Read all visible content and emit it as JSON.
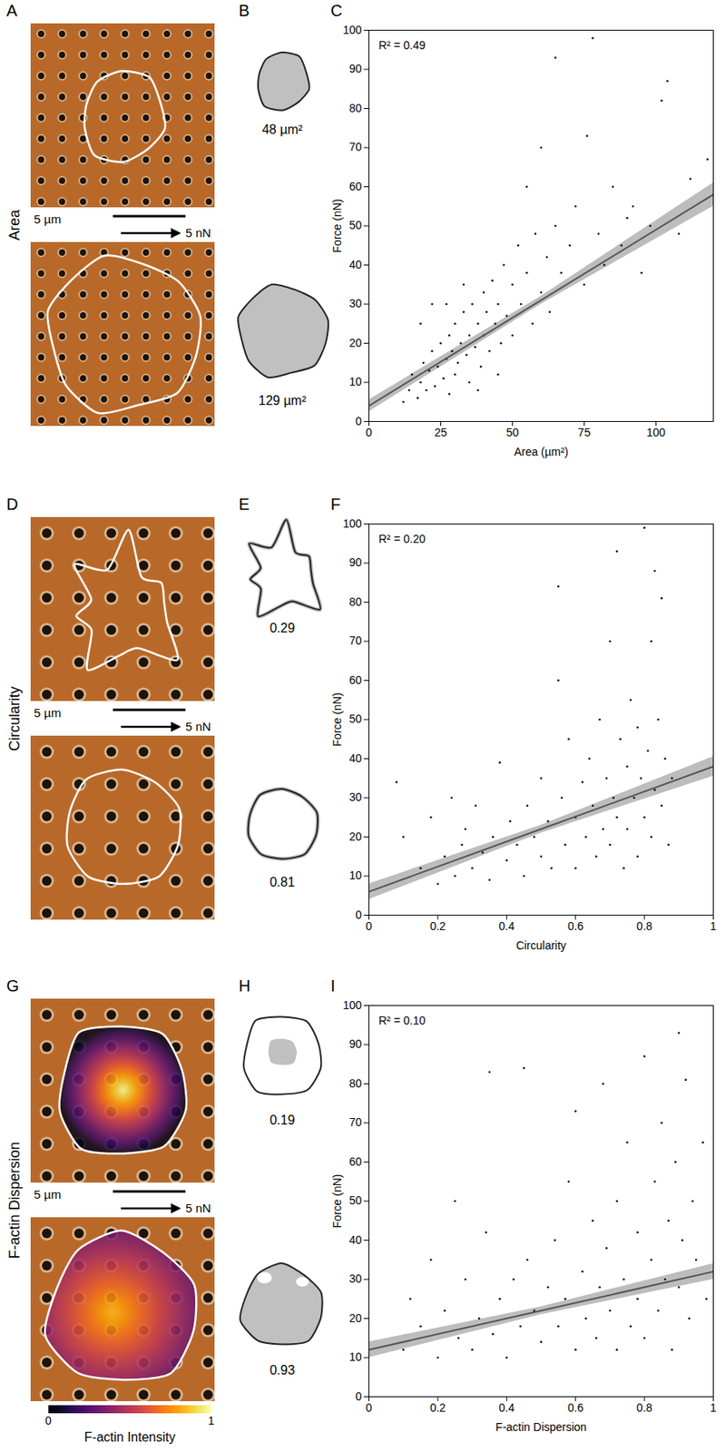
{
  "chart_data": [
    {
      "type": "scatter",
      "panel": "C",
      "annotation": "R² = 0.49",
      "x_label": "Area (µm²)",
      "y_label": "Force (nN)",
      "xlim": [
        0,
        120
      ],
      "xticks": [
        0,
        25,
        50,
        75,
        100
      ],
      "ylim": [
        0,
        100
      ],
      "yticks": [
        0,
        10,
        20,
        30,
        40,
        50,
        60,
        70,
        80,
        90,
        100
      ],
      "color": "#000000",
      "x": [
        12,
        14,
        15,
        17,
        18,
        19,
        20,
        21,
        22,
        23,
        24,
        25,
        26,
        27,
        28,
        28,
        29,
        30,
        30,
        31,
        32,
        33,
        34,
        35,
        35,
        36,
        37,
        38,
        39,
        40,
        40,
        41,
        42,
        43,
        44,
        45,
        46,
        47,
        48,
        50,
        50,
        52,
        53,
        55,
        55,
        57,
        58,
        60,
        60,
        62,
        63,
        65,
        65,
        67,
        70,
        72,
        75,
        76,
        78,
        80,
        82,
        85,
        88,
        90,
        92,
        95,
        98,
        102,
        104,
        108,
        112,
        118,
        22,
        33,
        45,
        38,
        27,
        18
      ],
      "y": [
        5,
        8,
        12,
        6,
        10,
        15,
        8,
        13,
        18,
        9,
        14,
        20,
        11,
        16,
        22,
        7,
        18,
        25,
        12,
        15,
        20,
        28,
        17,
        22,
        10,
        30,
        19,
        25,
        14,
        33,
        22,
        28,
        18,
        36,
        25,
        30,
        20,
        40,
        27,
        35,
        22,
        45,
        30,
        38,
        60,
        25,
        48,
        33,
        70,
        42,
        28,
        93,
        50,
        38,
        45,
        55,
        35,
        73,
        98,
        48,
        40,
        60,
        45,
        52,
        55,
        38,
        50,
        82,
        87,
        48,
        62,
        67,
        30,
        35,
        12,
        8,
        30,
        25
      ],
      "fit": {
        "x": [
          0,
          60,
          120
        ],
        "y": [
          4,
          31,
          58
        ],
        "lower": [
          2.5,
          30,
          55
        ],
        "upper": [
          5.5,
          32,
          61
        ],
        "color": "#555555"
      }
    },
    {
      "type": "scatter",
      "panel": "F",
      "annotation": "R² = 0.20",
      "x_label": "Circularity",
      "y_label": "Force (nN)",
      "xlim": [
        0,
        1
      ],
      "xticks": [
        0,
        0.2,
        0.4,
        0.6,
        0.8,
        1
      ],
      "ylim": [
        0,
        100
      ],
      "yticks": [
        0,
        10,
        20,
        30,
        40,
        50,
        60,
        70,
        80,
        90,
        100
      ],
      "color": "#000000",
      "x": [
        0.08,
        0.1,
        0.15,
        0.18,
        0.2,
        0.22,
        0.24,
        0.25,
        0.27,
        0.28,
        0.3,
        0.31,
        0.33,
        0.35,
        0.36,
        0.38,
        0.4,
        0.41,
        0.43,
        0.45,
        0.46,
        0.48,
        0.5,
        0.5,
        0.52,
        0.53,
        0.55,
        0.55,
        0.56,
        0.57,
        0.58,
        0.6,
        0.6,
        0.62,
        0.63,
        0.64,
        0.65,
        0.66,
        0.67,
        0.68,
        0.69,
        0.7,
        0.7,
        0.71,
        0.72,
        0.72,
        0.73,
        0.74,
        0.75,
        0.75,
        0.76,
        0.77,
        0.78,
        0.78,
        0.79,
        0.8,
        0.8,
        0.81,
        0.82,
        0.82,
        0.83,
        0.83,
        0.84,
        0.85,
        0.85,
        0.86,
        0.87,
        0.88
      ],
      "y": [
        34,
        20,
        12,
        25,
        8,
        15,
        30,
        10,
        18,
        22,
        12,
        28,
        16,
        9,
        20,
        39,
        14,
        24,
        18,
        10,
        28,
        20,
        35,
        15,
        24,
        12,
        60,
        84,
        30,
        18,
        45,
        25,
        12,
        34,
        20,
        40,
        28,
        15,
        50,
        22,
        35,
        70,
        18,
        30,
        93,
        25,
        45,
        12,
        38,
        22,
        55,
        30,
        48,
        15,
        35,
        99,
        25,
        42,
        70,
        20,
        88,
        32,
        50,
        81,
        28,
        40,
        18,
        35
      ],
      "fit": {
        "x": [
          0,
          0.5,
          1
        ],
        "y": [
          6,
          22,
          38
        ],
        "lower": [
          4,
          21,
          35.5
        ],
        "upper": [
          8,
          23,
          40.5
        ],
        "color": "#555555"
      }
    },
    {
      "type": "scatter",
      "panel": "I",
      "annotation": "R² = 0.10",
      "x_label": "F-actin Dispersion",
      "y_label": "Force (nN)",
      "xlim": [
        0,
        1
      ],
      "xticks": [
        0,
        0.2,
        0.4,
        0.6,
        0.8,
        1
      ],
      "ylim": [
        0,
        100
      ],
      "yticks": [
        0,
        10,
        20,
        30,
        40,
        50,
        60,
        70,
        80,
        90,
        100
      ],
      "color": "#000000",
      "x": [
        0.1,
        0.12,
        0.15,
        0.18,
        0.2,
        0.22,
        0.25,
        0.26,
        0.28,
        0.3,
        0.32,
        0.34,
        0.35,
        0.36,
        0.38,
        0.4,
        0.42,
        0.44,
        0.45,
        0.46,
        0.48,
        0.5,
        0.52,
        0.54,
        0.55,
        0.57,
        0.58,
        0.6,
        0.6,
        0.62,
        0.63,
        0.65,
        0.66,
        0.67,
        0.68,
        0.69,
        0.7,
        0.72,
        0.72,
        0.74,
        0.75,
        0.76,
        0.78,
        0.78,
        0.8,
        0.8,
        0.82,
        0.83,
        0.84,
        0.85,
        0.86,
        0.87,
        0.88,
        0.89,
        0.9,
        0.9,
        0.91,
        0.92,
        0.93,
        0.94,
        0.95,
        0.97,
        0.98
      ],
      "y": [
        12,
        25,
        18,
        35,
        10,
        22,
        50,
        15,
        30,
        12,
        20,
        42,
        83,
        16,
        25,
        10,
        30,
        18,
        84,
        35,
        22,
        14,
        28,
        40,
        18,
        25,
        55,
        12,
        73,
        32,
        20,
        45,
        15,
        28,
        80,
        38,
        22,
        50,
        12,
        30,
        65,
        18,
        42,
        25,
        87,
        15,
        35,
        55,
        22,
        70,
        30,
        45,
        12,
        60,
        93,
        28,
        40,
        81,
        20,
        50,
        35,
        65,
        25
      ],
      "fit": {
        "x": [
          0,
          0.5,
          1
        ],
        "y": [
          12,
          22,
          32
        ],
        "lower": [
          10,
          21,
          30
        ],
        "upper": [
          14,
          23,
          34
        ],
        "color": "#555555"
      }
    }
  ],
  "figure": {
    "rows": [
      {
        "row_label": "Area",
        "panels": [
          "A",
          "B"
        ],
        "scale_bar": "5 µm",
        "force_scale": "5 nN",
        "shape_labels": [
          "48 µm²",
          "129 µm²"
        ]
      },
      {
        "row_label": "Circularity",
        "panels": [
          "D",
          "E"
        ],
        "scale_bar": "5 µm",
        "force_scale": "5 nN",
        "shape_labels": [
          "0.29",
          "0.81"
        ]
      },
      {
        "row_label": "F-actin Dispersion",
        "panels": [
          "G",
          "H"
        ],
        "scale_bar": "5 µm",
        "force_scale": "5 nN",
        "shape_labels": [
          "0.19",
          "0.93"
        ],
        "colorbar": {
          "label": "F-actin Intensity",
          "range": [
            0,
            1
          ],
          "ticks": [
            0,
            1
          ]
        }
      }
    ]
  }
}
